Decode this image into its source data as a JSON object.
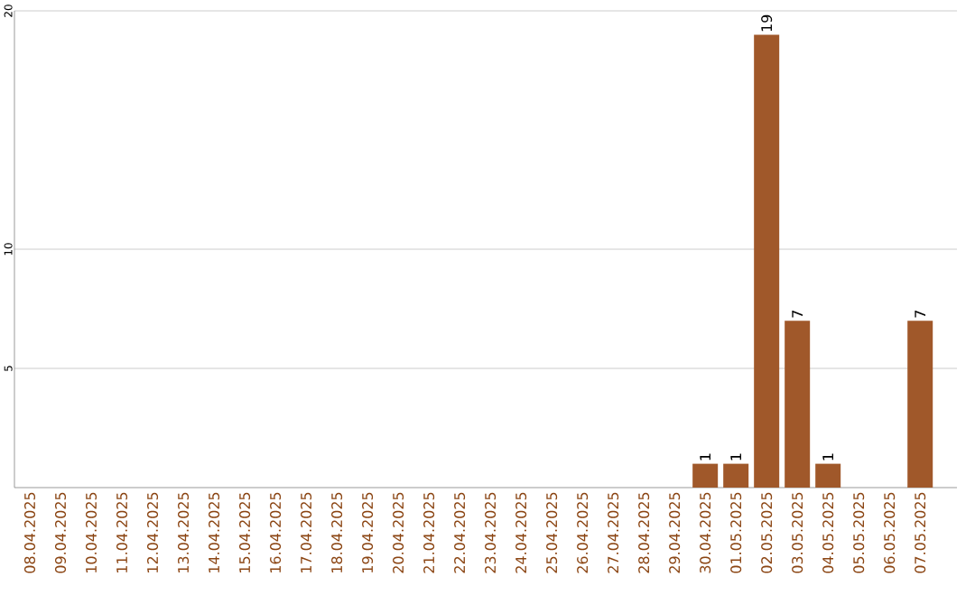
{
  "chart_data": {
    "type": "bar",
    "categories": [
      "08.04.2025",
      "09.04.2025",
      "10.04.2025",
      "11.04.2025",
      "12.04.2025",
      "13.04.2025",
      "14.04.2025",
      "15.04.2025",
      "16.04.2025",
      "17.04.2025",
      "18.04.2025",
      "19.04.2025",
      "20.04.2025",
      "21.04.2025",
      "22.04.2025",
      "23.04.2025",
      "24.04.2025",
      "25.04.2025",
      "26.04.2025",
      "27.04.2025",
      "28.04.2025",
      "29.04.2025",
      "30.04.2025",
      "01.05.2025",
      "02.05.2025",
      "03.05.2025",
      "04.05.2025",
      "05.05.2025",
      "06.05.2025",
      "07.05.2025"
    ],
    "values": [
      0,
      0,
      0,
      0,
      0,
      0,
      0,
      0,
      0,
      0,
      0,
      0,
      0,
      0,
      0,
      0,
      0,
      0,
      0,
      0,
      0,
      0,
      1,
      1,
      19,
      7,
      1,
      0,
      0,
      7
    ],
    "value_labels": [
      null,
      null,
      null,
      null,
      null,
      null,
      null,
      null,
      null,
      null,
      null,
      null,
      null,
      null,
      null,
      null,
      null,
      null,
      null,
      null,
      null,
      null,
      "1",
      "1",
      "19",
      "7",
      "1",
      null,
      null,
      "7"
    ],
    "color": "#a0582a",
    "ylim": [
      0,
      20
    ],
    "yticks": [
      5,
      10,
      20
    ],
    "grid": "y"
  }
}
